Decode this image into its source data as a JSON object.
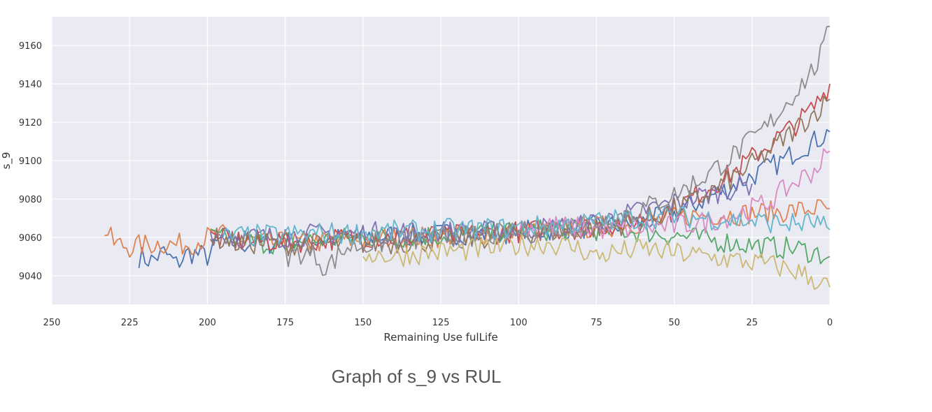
{
  "caption": "Graph of s_9 vs RUL",
  "chart_data": {
    "type": "line",
    "xlabel": "Remaining Use fulLife",
    "ylabel": "s_9",
    "xlim": [
      250,
      0
    ],
    "ylim": [
      9025,
      9175
    ],
    "x_ticks": [
      250,
      225,
      200,
      175,
      150,
      125,
      100,
      75,
      50,
      25,
      0
    ],
    "y_ticks": [
      9040,
      9060,
      9080,
      9100,
      9120,
      9140,
      9160
    ],
    "grid": true,
    "legend": "none",
    "colors": [
      "#4c72b0",
      "#dd8452",
      "#55a868",
      "#c44e52",
      "#8172b3",
      "#937860",
      "#da8bc3",
      "#8c8c8c",
      "#ccb974",
      "#64b5cd"
    ],
    "series": [
      {
        "color": "#4c72b0",
        "points": [
          [
            222,
            9050
          ],
          [
            218,
            9048
          ],
          [
            214,
            9052
          ],
          [
            210,
            9046
          ],
          [
            206,
            9052
          ],
          [
            200,
            9050
          ],
          [
            195,
            9060
          ],
          [
            190,
            9056
          ],
          [
            185,
            9058
          ],
          [
            180,
            9057
          ],
          [
            170,
            9058
          ],
          [
            160,
            9059
          ],
          [
            150,
            9060
          ],
          [
            140,
            9061
          ],
          [
            130,
            9061
          ],
          [
            120,
            9062
          ],
          [
            110,
            9062
          ],
          [
            100,
            9063
          ],
          [
            90,
            9064
          ],
          [
            80,
            9065
          ],
          [
            70,
            9066
          ],
          [
            60,
            9068
          ],
          [
            50,
            9072
          ],
          [
            40,
            9080
          ],
          [
            30,
            9088
          ],
          [
            20,
            9096
          ],
          [
            15,
            9100
          ],
          [
            10,
            9106
          ],
          [
            5,
            9110
          ],
          [
            2,
            9113
          ],
          [
            0,
            9115
          ]
        ]
      },
      {
        "color": "#dd8452",
        "points": [
          [
            233,
            9064
          ],
          [
            230,
            9057
          ],
          [
            225,
            9055
          ],
          [
            220,
            9056
          ],
          [
            215,
            9057
          ],
          [
            210,
            9056
          ],
          [
            205,
            9057
          ],
          [
            200,
            9060
          ],
          [
            195,
            9061
          ],
          [
            190,
            9058
          ],
          [
            185,
            9058
          ],
          [
            180,
            9057
          ],
          [
            170,
            9057
          ],
          [
            160,
            9058
          ],
          [
            150,
            9059
          ],
          [
            140,
            9060
          ],
          [
            130,
            9060
          ],
          [
            120,
            9061
          ],
          [
            110,
            9062
          ],
          [
            100,
            9063
          ],
          [
            90,
            9064
          ],
          [
            80,
            9065
          ],
          [
            70,
            9066
          ],
          [
            60,
            9068
          ],
          [
            50,
            9070
          ],
          [
            40,
            9072
          ],
          [
            30,
            9072
          ],
          [
            20,
            9073
          ],
          [
            10,
            9074
          ],
          [
            5,
            9075
          ],
          [
            0,
            9075
          ]
        ]
      },
      {
        "color": "#55a868",
        "points": [
          [
            199,
            9060
          ],
          [
            190,
            9058
          ],
          [
            180,
            9057
          ],
          [
            170,
            9058
          ],
          [
            160,
            9059
          ],
          [
            150,
            9060
          ],
          [
            140,
            9060
          ],
          [
            130,
            9061
          ],
          [
            120,
            9061
          ],
          [
            110,
            9062
          ],
          [
            100,
            9063
          ],
          [
            90,
            9064
          ],
          [
            80,
            9064
          ],
          [
            70,
            9064
          ],
          [
            60,
            9063
          ],
          [
            50,
            9061
          ],
          [
            40,
            9059
          ],
          [
            30,
            9057
          ],
          [
            20,
            9055
          ],
          [
            10,
            9054
          ],
          [
            5,
            9052
          ],
          [
            0,
            9050
          ]
        ]
      },
      {
        "color": "#c44e52",
        "points": [
          [
            199,
            9060
          ],
          [
            190,
            9058
          ],
          [
            180,
            9058
          ],
          [
            170,
            9058
          ],
          [
            160,
            9059
          ],
          [
            150,
            9060
          ],
          [
            140,
            9060
          ],
          [
            130,
            9061
          ],
          [
            120,
            9061
          ],
          [
            110,
            9062
          ],
          [
            100,
            9063
          ],
          [
            90,
            9064
          ],
          [
            80,
            9065
          ],
          [
            70,
            9067
          ],
          [
            60,
            9070
          ],
          [
            50,
            9075
          ],
          [
            40,
            9085
          ],
          [
            30,
            9095
          ],
          [
            20,
            9108
          ],
          [
            10,
            9120
          ],
          [
            5,
            9128
          ],
          [
            2,
            9135
          ],
          [
            0,
            9140
          ]
        ]
      },
      {
        "color": "#8172b3",
        "points": [
          [
            199,
            9062
          ],
          [
            190,
            9060
          ],
          [
            180,
            9060
          ],
          [
            170,
            9061
          ],
          [
            160,
            9062
          ],
          [
            150,
            9062
          ],
          [
            140,
            9063
          ],
          [
            130,
            9063
          ],
          [
            120,
            9063
          ],
          [
            110,
            9063
          ],
          [
            100,
            9064
          ],
          [
            90,
            9065
          ],
          [
            80,
            9066
          ],
          [
            70,
            9070
          ],
          [
            60,
            9074
          ],
          [
            50,
            9078
          ],
          [
            40,
            9082
          ],
          [
            30,
            9086
          ],
          [
            25,
            9088
          ]
        ]
      },
      {
        "color": "#937860",
        "points": [
          [
            199,
            9060
          ],
          [
            190,
            9057
          ],
          [
            180,
            9057
          ],
          [
            170,
            9056
          ],
          [
            160,
            9057
          ],
          [
            150,
            9057
          ],
          [
            140,
            9057
          ],
          [
            130,
            9058
          ],
          [
            120,
            9059
          ],
          [
            110,
            9060
          ],
          [
            100,
            9062
          ],
          [
            90,
            9063
          ],
          [
            80,
            9064
          ],
          [
            70,
            9066
          ],
          [
            60,
            9069
          ],
          [
            50,
            9074
          ],
          [
            40,
            9082
          ],
          [
            30,
            9092
          ],
          [
            20,
            9104
          ],
          [
            10,
            9118
          ],
          [
            5,
            9125
          ],
          [
            0,
            9132
          ]
        ]
      },
      {
        "color": "#da8bc3",
        "points": [
          [
            100,
            9066
          ],
          [
            90,
            9066
          ],
          [
            80,
            9065
          ],
          [
            70,
            9064
          ],
          [
            60,
            9065
          ],
          [
            50,
            9066
          ],
          [
            40,
            9068
          ],
          [
            30,
            9072
          ],
          [
            20,
            9078
          ],
          [
            15,
            9084
          ],
          [
            10,
            9090
          ],
          [
            5,
            9095
          ],
          [
            0,
            9105
          ]
        ]
      },
      {
        "color": "#8c8c8c",
        "points": [
          [
            175,
            9050
          ],
          [
            170,
            9052
          ],
          [
            165,
            9050
          ],
          [
            162,
            9044
          ],
          [
            155,
            9055
          ],
          [
            150,
            9056
          ],
          [
            140,
            9058
          ],
          [
            130,
            9059
          ],
          [
            120,
            9060
          ],
          [
            110,
            9061
          ],
          [
            100,
            9062
          ],
          [
            90,
            9064
          ],
          [
            80,
            9066
          ],
          [
            70,
            9070
          ],
          [
            60,
            9075
          ],
          [
            50,
            9082
          ],
          [
            40,
            9092
          ],
          [
            30,
            9104
          ],
          [
            20,
            9118
          ],
          [
            15,
            9128
          ],
          [
            10,
            9138
          ],
          [
            5,
            9148
          ],
          [
            2,
            9158
          ],
          [
            0,
            9170
          ]
        ]
      },
      {
        "color": "#ccb974",
        "points": [
          [
            150,
            9052
          ],
          [
            140,
            9050
          ],
          [
            130,
            9052
          ],
          [
            120,
            9053
          ],
          [
            110,
            9054
          ],
          [
            100,
            9056
          ],
          [
            90,
            9057
          ],
          [
            80,
            9054
          ],
          [
            75,
            9050
          ],
          [
            70,
            9052
          ],
          [
            60,
            9054
          ],
          [
            50,
            9052
          ],
          [
            40,
            9050
          ],
          [
            30,
            9048
          ],
          [
            20,
            9046
          ],
          [
            10,
            9042
          ],
          [
            5,
            9038
          ],
          [
            0,
            9034
          ]
        ]
      },
      {
        "color": "#64b5cd",
        "points": [
          [
            195,
            9060
          ],
          [
            185,
            9061
          ],
          [
            175,
            9061
          ],
          [
            165,
            9062
          ],
          [
            155,
            9062
          ],
          [
            145,
            9063
          ],
          [
            135,
            9063
          ],
          [
            125,
            9064
          ],
          [
            115,
            9064
          ],
          [
            100,
            9065
          ],
          [
            90,
            9066
          ],
          [
            80,
            9067
          ],
          [
            70,
            9069
          ],
          [
            60,
            9070
          ],
          [
            50,
            9071
          ],
          [
            40,
            9070
          ],
          [
            30,
            9069
          ],
          [
            20,
            9068
          ],
          [
            10,
            9067
          ],
          [
            5,
            9068
          ],
          [
            0,
            9064
          ]
        ]
      }
    ]
  }
}
